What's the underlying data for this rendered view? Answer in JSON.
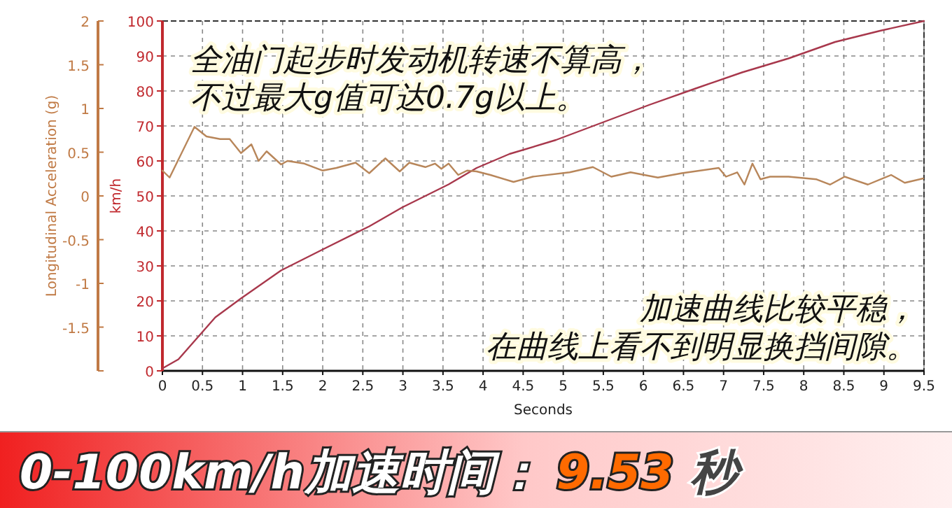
{
  "chart_data": {
    "type": "line",
    "title": "0-100km/h加速时间：9.53 秒",
    "xlabel": "Seconds",
    "ylabel": "km/h",
    "y2label": "Longitudinal Acceleration (g)",
    "annotations": [
      "全油门起步时发动机转速不算高，不过最大g值可达0.7g以上。",
      "加速曲线比较平稳，在曲线上看不到明显换挡间隙。"
    ],
    "xlim": [
      0,
      9.5
    ],
    "xticks": [
      0,
      0.5,
      1,
      1.5,
      2,
      2.5,
      3,
      3.5,
      4,
      4.5,
      5,
      5.5,
      6,
      6.5,
      7,
      7.5,
      8,
      8.5,
      9,
      9.5
    ],
    "ylim": [
      0,
      100
    ],
    "yticks": [
      0,
      10,
      20,
      30,
      40,
      50,
      60,
      70,
      80,
      90,
      100
    ],
    "y2lim": [
      -2,
      2
    ],
    "y2ticks": [
      {
        "value": -2,
        "label": null
      },
      -1.5,
      -1,
      -0.5,
      0,
      0.5,
      1,
      1.5,
      2
    ],
    "grid": true,
    "line_style": "solid",
    "series": [
      {
        "color": "#a8384c",
        "x": [
          0,
          0.2,
          0.43,
          0.66,
          0.98,
          1.48,
          2.0,
          2.58,
          2.99,
          3.57,
          3.92,
          4.33,
          4.91,
          5.49,
          6.07,
          6.65,
          7.23,
          7.81,
          8.39,
          8.97,
          9.5
        ],
        "values": [
          0.7,
          3.3,
          9.3,
          15.3,
          20.7,
          28.7,
          34.7,
          41.3,
          46.7,
          53.3,
          58,
          62,
          66,
          71,
          76,
          80.7,
          85.3,
          89.3,
          94,
          97.3,
          100
        ]
      },
      {
        "color": "#b8865a",
        "axis": "y2",
        "x": [
          0,
          0.09,
          0.4,
          0.55,
          0.72,
          0.84,
          0.98,
          1.11,
          1.2,
          1.3,
          1.48,
          1.56,
          1.77,
          2.0,
          2.17,
          2.41,
          2.58,
          2.78,
          2.96,
          3.08,
          3.28,
          3.4,
          3.48,
          3.57,
          3.69,
          3.8,
          3.92,
          4.09,
          4.38,
          4.62,
          5.08,
          5.37,
          5.6,
          5.84,
          6.18,
          6.48,
          6.94,
          7.03,
          7.17,
          7.26,
          7.36,
          7.46,
          7.58,
          7.81,
          8.16,
          8.33,
          8.51,
          8.8,
          9.09,
          9.26,
          9.49
        ],
        "values": [
          0.29,
          0.21,
          0.79,
          0.68,
          0.65,
          0.65,
          0.49,
          0.59,
          0.4,
          0.51,
          0.36,
          0.4,
          0.37,
          0.29,
          0.32,
          0.38,
          0.26,
          0.43,
          0.28,
          0.38,
          0.33,
          0.37,
          0.31,
          0.37,
          0.24,
          0.29,
          0.28,
          0.24,
          0.16,
          0.22,
          0.27,
          0.33,
          0.22,
          0.27,
          0.21,
          0.26,
          0.32,
          0.22,
          0.27,
          0.13,
          0.37,
          0.19,
          0.22,
          0.22,
          0.19,
          0.13,
          0.22,
          0.13,
          0.24,
          0.15,
          0.2
        ]
      }
    ]
  }
}
